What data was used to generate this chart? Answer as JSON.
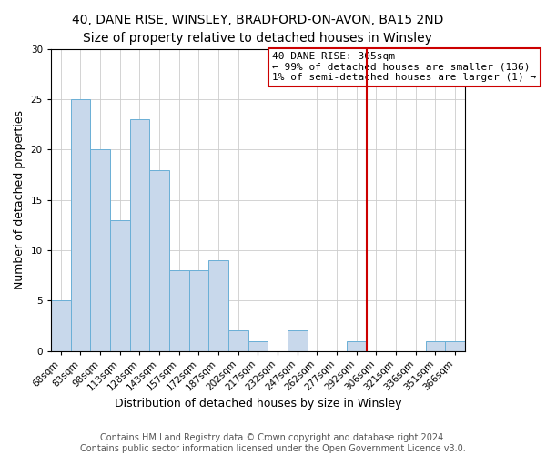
{
  "title": "40, DANE RISE, WINSLEY, BRADFORD-ON-AVON, BA15 2ND",
  "subtitle": "Size of property relative to detached houses in Winsley",
  "xlabel": "Distribution of detached houses by size in Winsley",
  "ylabel": "Number of detached properties",
  "bar_labels": [
    "68sqm",
    "83sqm",
    "98sqm",
    "113sqm",
    "128sqm",
    "143sqm",
    "157sqm",
    "172sqm",
    "187sqm",
    "202sqm",
    "217sqm",
    "232sqm",
    "247sqm",
    "262sqm",
    "277sqm",
    "292sqm",
    "306sqm",
    "321sqm",
    "336sqm",
    "351sqm",
    "366sqm"
  ],
  "bar_values": [
    5,
    25,
    20,
    13,
    23,
    18,
    8,
    8,
    9,
    2,
    1,
    0,
    2,
    0,
    0,
    1,
    0,
    0,
    0,
    1,
    1
  ],
  "bar_color": "#c8d8eb",
  "bar_edgecolor": "#6aafd6",
  "ylim": [
    0,
    30
  ],
  "yticks": [
    0,
    5,
    10,
    15,
    20,
    25,
    30
  ],
  "grid_color": "#cccccc",
  "property_line_idx": 16,
  "property_line_color": "#cc0000",
  "annotation_text": "40 DANE RISE: 305sqm\n← 99% of detached houses are smaller (136)\n1% of semi-detached houses are larger (1) →",
  "annotation_box_color": "#cc0000",
  "footer_line1": "Contains HM Land Registry data © Crown copyright and database right 2024.",
  "footer_line2": "Contains public sector information licensed under the Open Government Licence v3.0.",
  "title_fontsize": 10,
  "subtitle_fontsize": 9,
  "xlabel_fontsize": 9,
  "ylabel_fontsize": 9,
  "tick_fontsize": 7.5,
  "annotation_fontsize": 8,
  "footer_fontsize": 7
}
